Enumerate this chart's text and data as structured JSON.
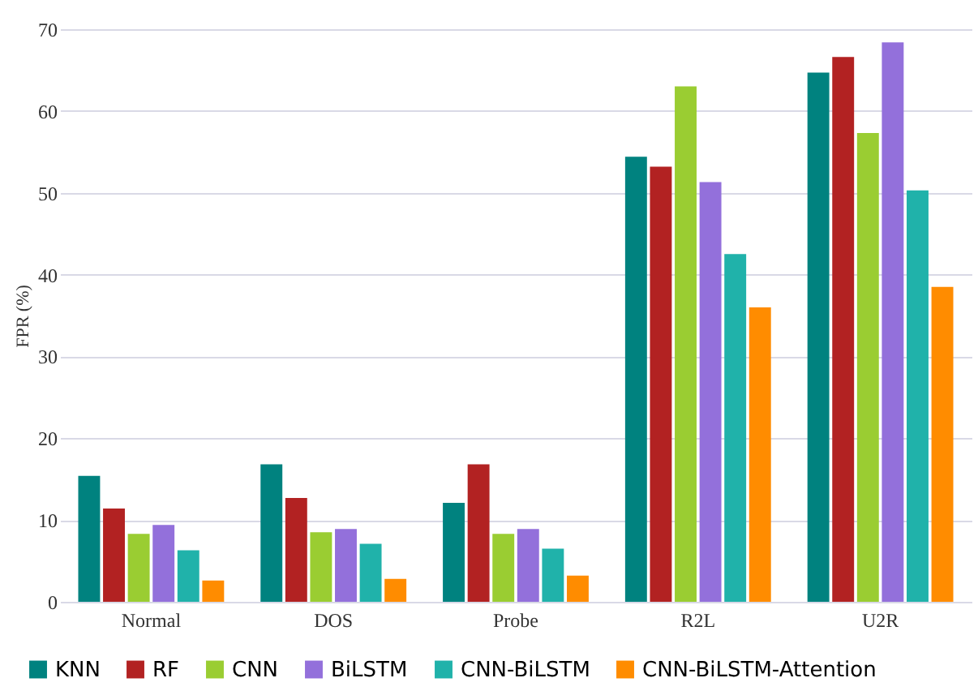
{
  "chart_data": {
    "type": "bar",
    "ylabel": "FPR (%)",
    "categories": [
      "Normal",
      "DOS",
      "Probe",
      "R2L",
      "U2R"
    ],
    "series": [
      {
        "name": "KNN",
        "color": "#00827f",
        "values": [
          15.4,
          16.8,
          12.1,
          54.4,
          64.7
        ]
      },
      {
        "name": "RF",
        "color": "#b22222",
        "values": [
          11.4,
          12.7,
          16.8,
          53.2,
          66.6
        ]
      },
      {
        "name": "CNN",
        "color": "#9acd32",
        "values": [
          8.3,
          8.5,
          8.3,
          63.0,
          57.3
        ]
      },
      {
        "name": "BiLSTM",
        "color": "#9370db",
        "values": [
          9.4,
          8.9,
          8.9,
          51.3,
          68.4
        ]
      },
      {
        "name": "CNN-BiLSTM",
        "color": "#20b2aa",
        "values": [
          6.3,
          7.1,
          6.5,
          42.5,
          50.3
        ]
      },
      {
        "name": "CNN-BiLSTM-Attention",
        "color": "#ff8c00",
        "values": [
          2.6,
          2.8,
          3.2,
          36.0,
          38.5
        ]
      }
    ],
    "ylim": [
      0,
      70
    ],
    "yticks": [
      0,
      10,
      20,
      30,
      40,
      50,
      60,
      70
    ],
    "grid": "y",
    "legend": "bottom"
  }
}
